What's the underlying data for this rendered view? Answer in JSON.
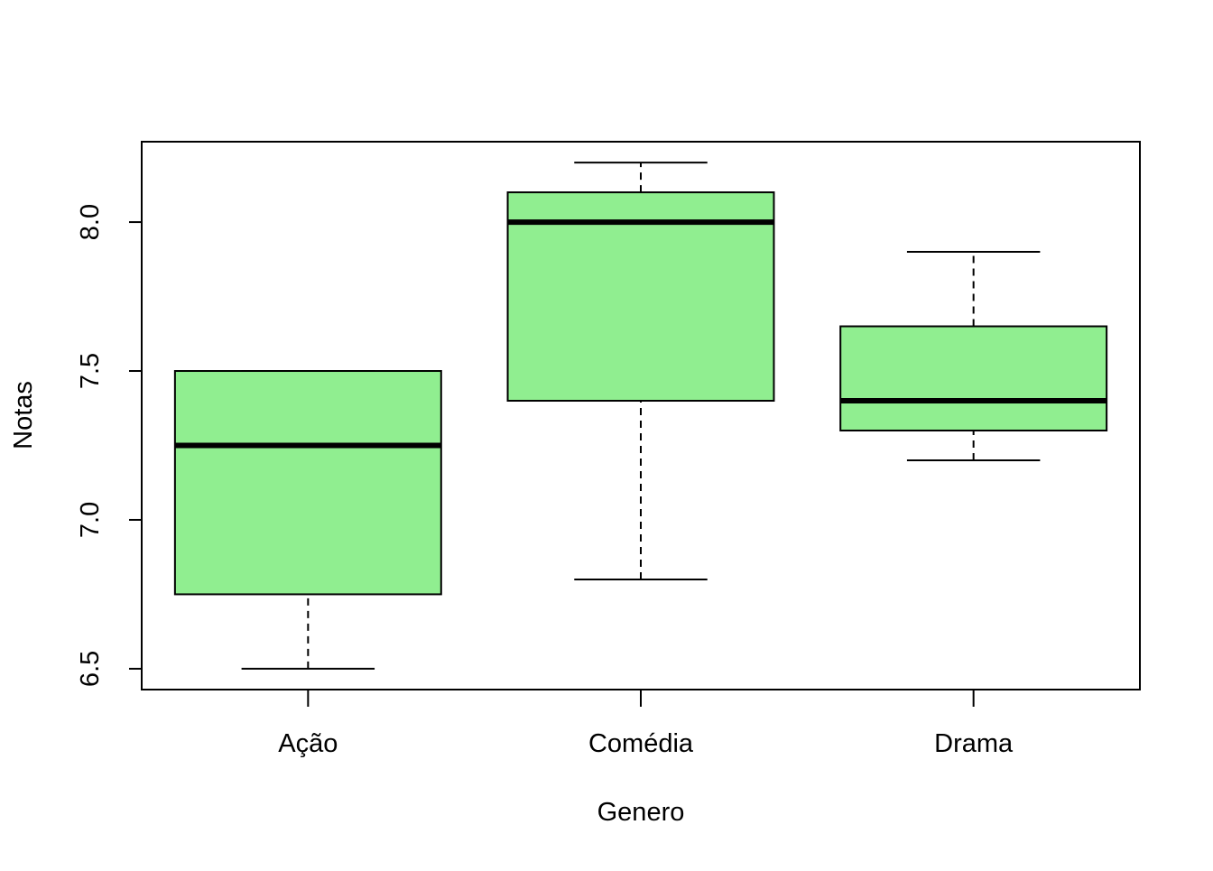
{
  "chart_data": {
    "type": "boxplot",
    "title": "",
    "xlabel": "Genero",
    "ylabel": "Notas",
    "categories": [
      "Ação",
      "Comédia",
      "Drama"
    ],
    "ylim": [
      6.43,
      8.27
    ],
    "yticks": [
      "6.5",
      "7.0",
      "7.5",
      "8.0"
    ],
    "ytick_values": [
      6.5,
      7.0,
      7.5,
      8.0
    ],
    "grid": false,
    "legend": "none",
    "box_color": "#90EE90",
    "line_color": "#000000",
    "boxes": [
      {
        "category": "Ação",
        "whisker_low": 6.5,
        "q1": 6.75,
        "median": 7.25,
        "q3": 7.5,
        "whisker_high": 7.5
      },
      {
        "category": "Comédia",
        "whisker_low": 6.8,
        "q1": 7.4,
        "median": 8.0,
        "q3": 8.1,
        "whisker_high": 8.2
      },
      {
        "category": "Drama",
        "whisker_low": 7.2,
        "q1": 7.3,
        "median": 7.4,
        "q3": 7.65,
        "whisker_high": 7.9
      }
    ]
  }
}
